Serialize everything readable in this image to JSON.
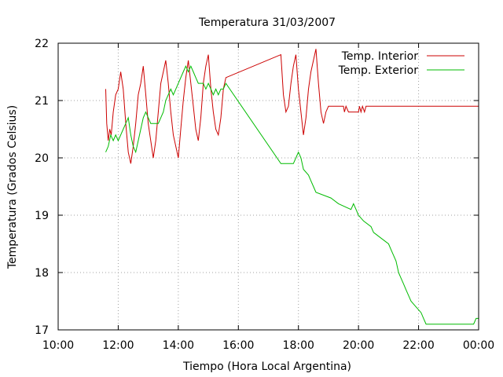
{
  "chart_data": {
    "type": "line",
    "title": "Temperatura 31/03/2007",
    "xlabel": "Tiempo (Hora Local Argentina)",
    "ylabel": "Temperatura (Grados Celsius)",
    "xlim": [
      "10:00",
      "00:00"
    ],
    "ylim": [
      17,
      22
    ],
    "x_ticks": [
      "10:00",
      "12:00",
      "14:00",
      "16:00",
      "18:00",
      "20:00",
      "22:00",
      "00:00"
    ],
    "y_ticks": [
      "17",
      "18",
      "19",
      "20",
      "21",
      "22"
    ],
    "grid": true,
    "legend_position": "top-right",
    "series": [
      {
        "name": "Temp. Interior",
        "color": "#cc0000",
        "points": [
          [
            "11:35",
            21.2
          ],
          [
            "11:37",
            20.6
          ],
          [
            "11:40",
            20.3
          ],
          [
            "11:43",
            20.5
          ],
          [
            "11:46",
            20.4
          ],
          [
            "11:50",
            20.8
          ],
          [
            "11:55",
            21.1
          ],
          [
            "12:00",
            21.2
          ],
          [
            "12:05",
            21.5
          ],
          [
            "12:10",
            21.2
          ],
          [
            "12:15",
            20.6
          ],
          [
            "12:20",
            20.1
          ],
          [
            "12:25",
            19.9
          ],
          [
            "12:30",
            20.2
          ],
          [
            "12:35",
            20.6
          ],
          [
            "12:40",
            21.1
          ],
          [
            "12:45",
            21.3
          ],
          [
            "12:50",
            21.6
          ],
          [
            "12:55",
            21.1
          ],
          [
            "13:00",
            20.6
          ],
          [
            "13:05",
            20.3
          ],
          [
            "13:10",
            20.0
          ],
          [
            "13:15",
            20.3
          ],
          [
            "13:20",
            20.8
          ],
          [
            "13:25",
            21.3
          ],
          [
            "13:30",
            21.5
          ],
          [
            "13:35",
            21.7
          ],
          [
            "13:40",
            21.3
          ],
          [
            "13:45",
            20.8
          ],
          [
            "13:50",
            20.4
          ],
          [
            "13:55",
            20.2
          ],
          [
            "14:00",
            20.0
          ],
          [
            "14:05",
            20.5
          ],
          [
            "14:10",
            21.0
          ],
          [
            "14:15",
            21.4
          ],
          [
            "14:20",
            21.7
          ],
          [
            "14:25",
            21.3
          ],
          [
            "14:30",
            20.9
          ],
          [
            "14:35",
            20.5
          ],
          [
            "14:40",
            20.3
          ],
          [
            "14:45",
            20.7
          ],
          [
            "14:50",
            21.3
          ],
          [
            "14:55",
            21.6
          ],
          [
            "15:00",
            21.8
          ],
          [
            "15:05",
            21.2
          ],
          [
            "15:10",
            20.8
          ],
          [
            "15:15",
            20.5
          ],
          [
            "15:20",
            20.4
          ],
          [
            "15:25",
            20.7
          ],
          [
            "15:30",
            21.2
          ],
          [
            "15:35",
            21.4
          ],
          [
            "17:25",
            21.8
          ],
          [
            "17:30",
            21.1
          ],
          [
            "17:35",
            20.8
          ],
          [
            "17:40",
            20.9
          ],
          [
            "17:45",
            21.3
          ],
          [
            "17:50",
            21.6
          ],
          [
            "17:55",
            21.8
          ],
          [
            "18:00",
            21.2
          ],
          [
            "18:05",
            20.8
          ],
          [
            "18:10",
            20.4
          ],
          [
            "18:15",
            20.7
          ],
          [
            "18:20",
            21.2
          ],
          [
            "18:25",
            21.5
          ],
          [
            "18:30",
            21.7
          ],
          [
            "18:35",
            21.9
          ],
          [
            "18:40",
            21.3
          ],
          [
            "18:45",
            20.8
          ],
          [
            "18:50",
            20.6
          ],
          [
            "18:55",
            20.8
          ],
          [
            "19:00",
            20.9
          ],
          [
            "19:30",
            20.9
          ],
          [
            "19:32",
            20.8
          ],
          [
            "19:35",
            20.9
          ],
          [
            "19:40",
            20.8
          ],
          [
            "20:00",
            20.8
          ],
          [
            "20:02",
            20.9
          ],
          [
            "20:05",
            20.8
          ],
          [
            "20:08",
            20.9
          ],
          [
            "20:12",
            20.8
          ],
          [
            "20:15",
            20.9
          ],
          [
            "00:00",
            20.9
          ]
        ]
      },
      {
        "name": "Temp. Exterior",
        "color": "#00bb00",
        "points": [
          [
            "11:35",
            20.1
          ],
          [
            "11:40",
            20.2
          ],
          [
            "11:45",
            20.4
          ],
          [
            "11:50",
            20.3
          ],
          [
            "11:55",
            20.4
          ],
          [
            "12:00",
            20.3
          ],
          [
            "12:05",
            20.4
          ],
          [
            "12:10",
            20.5
          ],
          [
            "12:15",
            20.6
          ],
          [
            "12:20",
            20.7
          ],
          [
            "12:25",
            20.4
          ],
          [
            "12:30",
            20.2
          ],
          [
            "12:35",
            20.1
          ],
          [
            "12:40",
            20.3
          ],
          [
            "12:45",
            20.5
          ],
          [
            "12:50",
            20.7
          ],
          [
            "12:55",
            20.8
          ],
          [
            "13:00",
            20.7
          ],
          [
            "13:05",
            20.6
          ],
          [
            "13:20",
            20.6
          ],
          [
            "13:25",
            20.7
          ],
          [
            "13:30",
            20.8
          ],
          [
            "13:35",
            21.0
          ],
          [
            "13:40",
            21.1
          ],
          [
            "13:45",
            21.2
          ],
          [
            "13:50",
            21.1
          ],
          [
            "13:55",
            21.2
          ],
          [
            "14:00",
            21.3
          ],
          [
            "14:05",
            21.4
          ],
          [
            "14:10",
            21.5
          ],
          [
            "14:15",
            21.6
          ],
          [
            "14:20",
            21.5
          ],
          [
            "14:25",
            21.6
          ],
          [
            "14:30",
            21.5
          ],
          [
            "14:35",
            21.4
          ],
          [
            "14:40",
            21.3
          ],
          [
            "14:45",
            21.3
          ],
          [
            "14:50",
            21.3
          ],
          [
            "14:55",
            21.2
          ],
          [
            "15:00",
            21.3
          ],
          [
            "15:05",
            21.2
          ],
          [
            "15:10",
            21.1
          ],
          [
            "15:15",
            21.2
          ],
          [
            "15:20",
            21.1
          ],
          [
            "15:25",
            21.2
          ],
          [
            "15:30",
            21.2
          ],
          [
            "15:35",
            21.3
          ],
          [
            "17:25",
            19.9
          ],
          [
            "17:50",
            19.9
          ],
          [
            "17:55",
            20.0
          ],
          [
            "18:00",
            20.1
          ],
          [
            "18:05",
            20.0
          ],
          [
            "18:10",
            19.8
          ],
          [
            "18:20",
            19.7
          ],
          [
            "18:25",
            19.6
          ],
          [
            "18:30",
            19.5
          ],
          [
            "18:35",
            19.4
          ],
          [
            "19:05",
            19.3
          ],
          [
            "19:20",
            19.2
          ],
          [
            "19:45",
            19.1
          ],
          [
            "19:50",
            19.2
          ],
          [
            "19:55",
            19.1
          ],
          [
            "20:00",
            19.0
          ],
          [
            "20:10",
            18.9
          ],
          [
            "20:25",
            18.8
          ],
          [
            "20:30",
            18.7
          ],
          [
            "20:45",
            18.6
          ],
          [
            "21:00",
            18.5
          ],
          [
            "21:05",
            18.4
          ],
          [
            "21:10",
            18.3
          ],
          [
            "21:15",
            18.2
          ],
          [
            "21:20",
            18.0
          ],
          [
            "21:25",
            17.9
          ],
          [
            "21:30",
            17.8
          ],
          [
            "21:35",
            17.7
          ],
          [
            "21:40",
            17.6
          ],
          [
            "21:45",
            17.5
          ],
          [
            "21:55",
            17.4
          ],
          [
            "22:05",
            17.3
          ],
          [
            "22:10",
            17.2
          ],
          [
            "22:15",
            17.1
          ],
          [
            "23:50",
            17.1
          ],
          [
            "23:55",
            17.2
          ],
          [
            "00:00",
            17.2
          ]
        ]
      }
    ]
  }
}
